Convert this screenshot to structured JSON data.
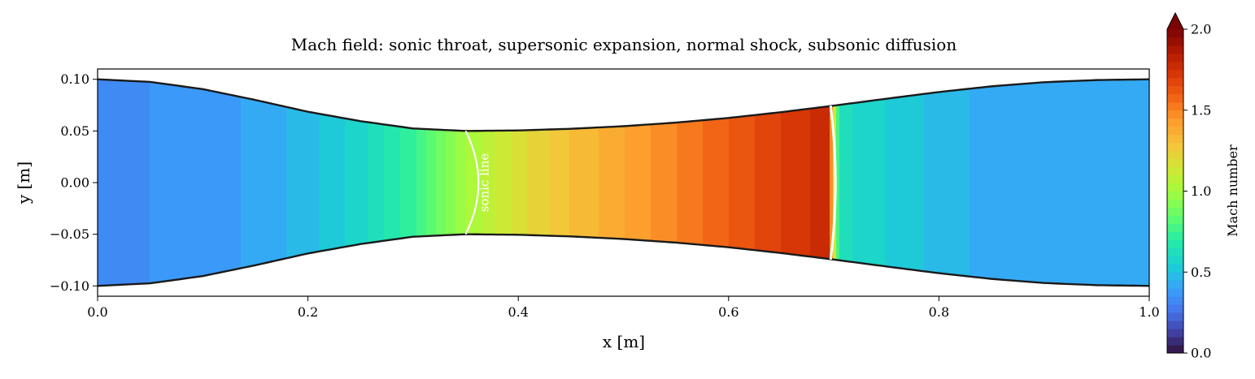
{
  "chart_data": {
    "type": "heatmap",
    "title": "Mach field: sonic throat, supersonic expansion, normal shock, subsonic diffusion",
    "xlabel": "x [m]",
    "ylabel": "y [m]",
    "xlim": [
      0.0,
      1.0
    ],
    "ylim": [
      -0.11,
      0.11
    ],
    "x_ticks": [
      0.0,
      0.2,
      0.4,
      0.6,
      0.8,
      1.0
    ],
    "x_tick_labels": [
      "0.0",
      "0.2",
      "0.4",
      "0.6",
      "0.8",
      "1.0"
    ],
    "y_ticks": [
      0.1,
      0.05,
      0.0,
      -0.05,
      -0.1
    ],
    "y_tick_labels": [
      "0.10",
      "0.05",
      "0.00",
      "−0.05",
      "−0.10"
    ],
    "colorbar": {
      "label": "Mach number",
      "range": [
        0.0,
        2.0
      ],
      "ticks": [
        0.0,
        0.5,
        1.0,
        1.5,
        2.0
      ],
      "tick_labels": [
        "0.0",
        "0.5",
        "1.0",
        "1.5",
        "2.0"
      ],
      "extend": "max",
      "colormap": "turbo"
    },
    "nozzle": {
      "inlet_half_height": 0.1,
      "throat_x": 0.35,
      "throat_half_height": 0.05,
      "exit_half_height": 0.1
    },
    "wall_profile": {
      "x": [
        0.0,
        0.05,
        0.1,
        0.15,
        0.2,
        0.25,
        0.3,
        0.35,
        0.4,
        0.45,
        0.5,
        0.55,
        0.6,
        0.65,
        0.7,
        0.75,
        0.8,
        0.85,
        0.9,
        0.95,
        1.0
      ],
      "half_height": [
        0.1,
        0.0975,
        0.0905,
        0.08,
        0.0686,
        0.0595,
        0.0524,
        0.05,
        0.0505,
        0.0521,
        0.0546,
        0.0581,
        0.0626,
        0.0682,
        0.0745,
        0.0812,
        0.0877,
        0.0932,
        0.0972,
        0.0993,
        0.1
      ]
    },
    "centerline_mach": {
      "x": [
        0.0,
        0.05,
        0.1,
        0.15,
        0.2,
        0.25,
        0.3,
        0.35,
        0.4,
        0.45,
        0.5,
        0.55,
        0.6,
        0.65,
        0.695,
        0.705,
        0.75,
        0.8,
        0.85,
        0.9,
        0.95,
        1.0
      ],
      "mach": [
        0.34,
        0.35,
        0.37,
        0.41,
        0.48,
        0.58,
        0.74,
        1.0,
        1.18,
        1.3,
        1.4,
        1.5,
        1.6,
        1.7,
        1.78,
        0.62,
        0.55,
        0.48,
        0.43,
        0.41,
        0.4,
        0.4
      ]
    },
    "sonic_line": {
      "label": "sonic line",
      "x": 0.35
    },
    "normal_shock": {
      "x": 0.7
    }
  }
}
